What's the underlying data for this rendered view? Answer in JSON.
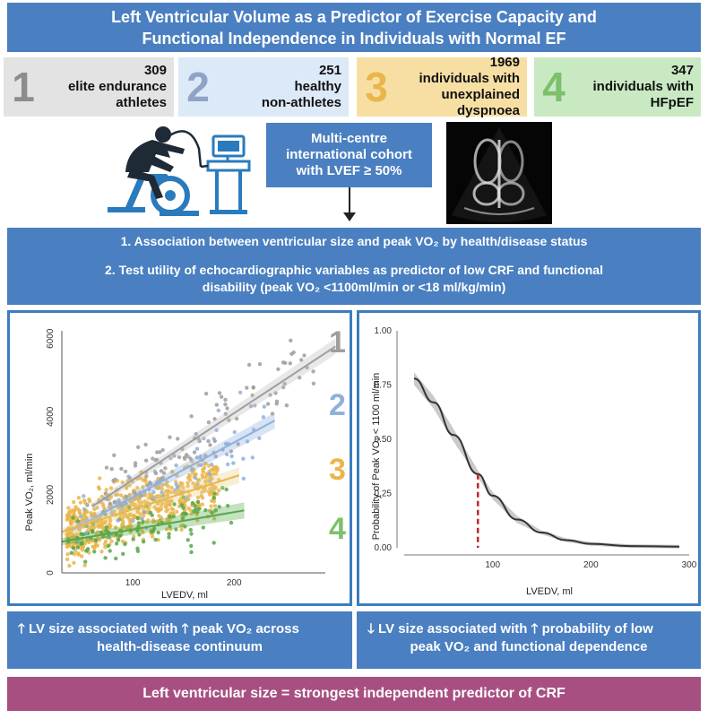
{
  "title": {
    "line1": "Left Ventricular Volume as a Predictor of Exercise Capacity and",
    "line2": "Functional Independence in Individuals with Normal EF"
  },
  "groups": [
    {
      "num": "1",
      "count": "309",
      "desc1": "elite endurance",
      "desc2": "athletes",
      "bg": "#e3e3e3",
      "color": "#8c8c8c"
    },
    {
      "num": "2",
      "count": "251",
      "desc1": "healthy",
      "desc2": "non-athletes",
      "bg": "#dce9f7",
      "color": "#8fa3c7"
    },
    {
      "num": "3",
      "count": "1969",
      "desc1": "individuals with",
      "desc2": "unexplained dyspnoea",
      "bg": "#f7dfa4",
      "color": "#e9b64a"
    },
    {
      "num": "4",
      "count": "347",
      "desc1": "individuals with",
      "desc2": "HFpEF",
      "bg": "#c9e9c3",
      "color": "#7cc06b"
    }
  ],
  "cohort": {
    "line1": "Multi-centre",
    "line2": "international cohort",
    "line3": "with LVEF ≥ 50%"
  },
  "aims": {
    "aim1": "1. Association between ventricular size and peak VO₂ by health/disease status",
    "aim2_line1": "2. Test utility of echocardiographic variables as predictor of low CRF and functional",
    "aim2_line2": "disability (peak VO₂ <1100ml/min or <18 ml/kg/min)"
  },
  "chart_data": [
    {
      "type": "scatter",
      "xlabel": "LVEDV, ml",
      "ylabel": "Peak VO₂, ml/min",
      "x_ticks": [
        "100",
        "200"
      ],
      "y_ticks": [
        "0",
        "2000",
        "4000",
        "6000"
      ],
      "xlim": [
        30,
        290
      ],
      "ylim": [
        0,
        6200
      ],
      "series": [
        {
          "name": "1",
          "color": "#9e9e9e",
          "fit": [
            [
              60,
              1700
            ],
            [
              300,
              5800
            ]
          ]
        },
        {
          "name": "2",
          "color": "#8fb0dc",
          "fit": [
            [
              40,
              1100
            ],
            [
              240,
              3900
            ]
          ]
        },
        {
          "name": "3",
          "color": "#e9b64a",
          "fit": [
            [
              30,
              1050
            ],
            [
              205,
              2500
            ]
          ]
        },
        {
          "name": "4",
          "color": "#55a84a",
          "fit": [
            [
              30,
              800
            ],
            [
              210,
              1600
            ]
          ]
        }
      ]
    },
    {
      "type": "line",
      "xlabel": "LVEDV, ml",
      "ylabel": "Probability of Peak VO₂ < 1100 ml/min",
      "x_ticks": [
        "100",
        "200",
        "300"
      ],
      "y_ticks": [
        "0.00",
        "0.25",
        "0.50",
        "0.75",
        "1.00"
      ],
      "xlim": [
        10,
        300
      ],
      "ylim": [
        0,
        1
      ],
      "x": [
        20,
        40,
        60,
        85,
        100,
        125,
        150,
        175,
        200,
        240,
        290
      ],
      "y": [
        0.78,
        0.67,
        0.52,
        0.34,
        0.24,
        0.13,
        0.07,
        0.035,
        0.018,
        0.008,
        0.005
      ],
      "threshold_x": 85,
      "threshold_y": 0.34
    }
  ],
  "findings": {
    "left_line1": "LV size associated with",
    "left_line1b": "peak VO₂ across",
    "left_line2": "health-disease continuum",
    "right_line1": "LV size associated with",
    "right_line1b": "probability of low",
    "right_line2": "peak VO₂ and functional dependence"
  },
  "conclusion": "Left ventricular size = strongest independent predictor of CRF"
}
